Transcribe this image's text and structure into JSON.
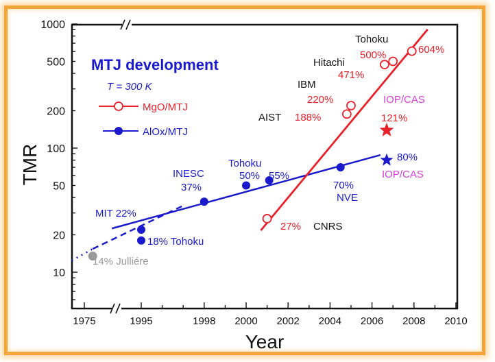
{
  "chart_data": {
    "type": "scatter",
    "title": "MTJ development",
    "subtitle": "T = 300 K",
    "xlabel": "Year",
    "ylabel": "TMR",
    "yscale": "log",
    "ylim": [
      5,
      1000
    ],
    "xlim": [
      1974.4,
      2010
    ],
    "x_axis_break": "between 1975 and 1995",
    "x_ticks": [
      "1975",
      "1995",
      "1998",
      "2000",
      "2002",
      "2004",
      "2006",
      "2008",
      "2010"
    ],
    "y_ticks": [
      "10",
      "20",
      "50",
      "100",
      "200",
      "500",
      "1000"
    ],
    "grid": false,
    "legend": {
      "placement": "top-left",
      "entries": [
        "MgO/MTJ",
        "AlOx/MTJ"
      ]
    },
    "colors": {
      "mgo": "#e8202a",
      "alox": "#1a1acc",
      "iop": "#d63fd6",
      "julliere": "#9a9a9a"
    },
    "series": [
      {
        "name": "MgO/MTJ",
        "marker": "open-circle",
        "points": [
          {
            "x": 2001.0,
            "y": 27
          },
          {
            "x": 2004.8,
            "y": 188
          },
          {
            "x": 2005.0,
            "y": 220
          },
          {
            "x": 2006.6,
            "y": 471
          },
          {
            "x": 2007.0,
            "y": 500
          },
          {
            "x": 2007.9,
            "y": 604
          }
        ],
        "fit": [
          {
            "x": 2000.7,
            "y": 21.7
          },
          {
            "x": 2008.65,
            "y": 904
          }
        ]
      },
      {
        "name": "AlOx/MTJ",
        "marker": "filled-circle",
        "points": [
          {
            "x": 1995.0,
            "y": 22
          },
          {
            "x": 1995.0,
            "y": 18
          },
          {
            "x": 1998.0,
            "y": 37
          },
          {
            "x": 2000.0,
            "y": 50
          },
          {
            "x": 2001.1,
            "y": 55
          },
          {
            "x": 2004.5,
            "y": 70
          }
        ],
        "fit": [
          {
            "x": 1993.6,
            "y": 22.5
          },
          {
            "x": 2006.4,
            "y": 88
          }
        ]
      }
    ],
    "extra_points": [
      {
        "label": "Jullière",
        "x": 1975.4,
        "y": 14,
        "marker": "gray-circle"
      },
      {
        "label": "IOP/CAS MgO",
        "x": 2006.7,
        "y": 121,
        "marker": "red-star"
      },
      {
        "label": "IOP/CAS AlOx",
        "x": 2006.7,
        "y": 80,
        "marker": "blue-star"
      }
    ],
    "dashed_extrapolation": [
      {
        "x": 1975.4,
        "y": 15.4
      },
      {
        "x": 1997.1,
        "y": 35
      }
    ],
    "dotted_extrapolation": [
      {
        "x": 1974.4,
        "y": 12.4
      },
      {
        "x": 1975.4,
        "y": 15.4
      }
    ],
    "annotations": {
      "tohoku_top": "Tohoku",
      "p500": "500%",
      "p604": "604%",
      "hitachi": "Hitachi",
      "p471": "471%",
      "ibm": "IBM",
      "p220": "220%",
      "aist": "AIST",
      "p188": "188%",
      "iop_red": "IOP/CAS",
      "p121": "121%",
      "p80": "80%",
      "iop_blue": "IOP/CAS",
      "tohoku_mid": "Tohoku",
      "p50": "50%",
      "p55": "55%",
      "inesc": "INESC",
      "p37": "37%",
      "nve_pct": "70%",
      "nve": "NVE",
      "mit": "MIT 22%",
      "p27": "27%",
      "cnrs": "CNRS",
      "tohoku18": "18% Tohoku",
      "julliere": "14% Julliére"
    }
  }
}
